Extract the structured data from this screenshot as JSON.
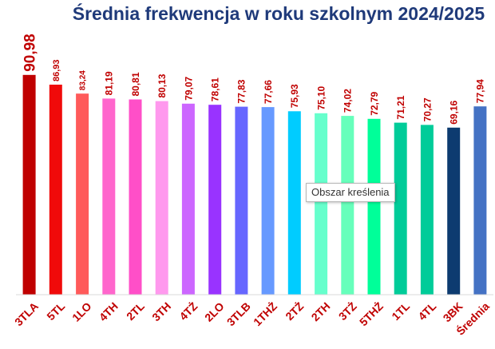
{
  "chart_data": {
    "type": "bar",
    "title": "Średnia frekwencja w roku szkolnym 2024/2025",
    "categories": [
      "3TLA",
      "5TL",
      "1LO",
      "4TH",
      "2TL",
      "3TH",
      "4TŻ",
      "2LO",
      "3TLB",
      "1THŻ",
      "2TŻ",
      "2TH",
      "3TŻ",
      "5THŻ",
      "1TL",
      "4TL",
      "3BK",
      "Średnia"
    ],
    "value_labels": [
      "90,98",
      "86,93",
      "83,24",
      "81,19",
      "80,81",
      "80,13",
      "79,07",
      "78,61",
      "77,83",
      "77,66",
      "75,93",
      "75,10",
      "74,02",
      "72,79",
      "71,21",
      "70,27",
      "69,16",
      "77,94"
    ],
    "values": [
      90.98,
      86.93,
      83.24,
      81.19,
      80.81,
      80.13,
      79.07,
      78.61,
      77.83,
      77.66,
      75.93,
      75.1,
      74.02,
      72.79,
      71.21,
      70.27,
      69.16,
      77.94
    ],
    "colors": [
      "#c00000",
      "#f00a0a",
      "#ff5a5a",
      "#ff66cc",
      "#ff4fc8",
      "#ff99ee",
      "#cc66ff",
      "#9933ff",
      "#6666ff",
      "#6699ff",
      "#00ccff",
      "#66ffcc",
      "#66ffbb",
      "#00ff99",
      "#00cc99",
      "#00cc99",
      "#0d3b70",
      "#4472c4"
    ],
    "ylim": [
      0,
      100
    ],
    "xlabel": "",
    "ylabel": "",
    "grid": false,
    "legend": "none"
  },
  "tooltip": {
    "text": "Obszar kreślenia"
  }
}
